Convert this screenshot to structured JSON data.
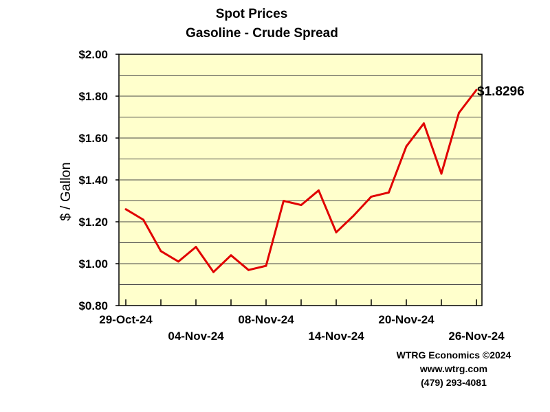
{
  "chart_data": {
    "type": "line",
    "title": "Spot Prices",
    "subtitle": "Gasoline - Crude Spread",
    "ylabel": "$ / Gallon",
    "ylim": [
      0.8,
      2.0
    ],
    "y_ticks": [
      "$0.80",
      "$1.00",
      "$1.20",
      "$1.40",
      "$1.60",
      "$1.80",
      "$2.00"
    ],
    "x_labels": [
      {
        "index": 0,
        "text": "29-Oct-24",
        "row": 1
      },
      {
        "index": 4,
        "text": "04-Nov-24",
        "row": 2
      },
      {
        "index": 8,
        "text": "08-Nov-24",
        "row": 1
      },
      {
        "index": 12,
        "text": "14-Nov-24",
        "row": 2
      },
      {
        "index": 16,
        "text": "20-Nov-24",
        "row": 1
      },
      {
        "index": 20,
        "text": "26-Nov-24",
        "row": 2
      }
    ],
    "series": [
      {
        "color": "#e00000",
        "values": [
          1.26,
          1.21,
          1.06,
          1.01,
          1.08,
          0.96,
          1.04,
          0.97,
          0.99,
          1.3,
          1.28,
          1.35,
          1.15,
          1.23,
          1.32,
          1.34,
          1.56,
          1.67,
          1.43,
          1.72,
          1.8296
        ]
      }
    ],
    "end_label": "$1.8296",
    "grid": true,
    "plot_background": "#ffffcc"
  },
  "credits": {
    "line1": "WTRG Economics ©2024",
    "line2": "www.wtrg.com",
    "line3": "(479) 293-4081"
  }
}
